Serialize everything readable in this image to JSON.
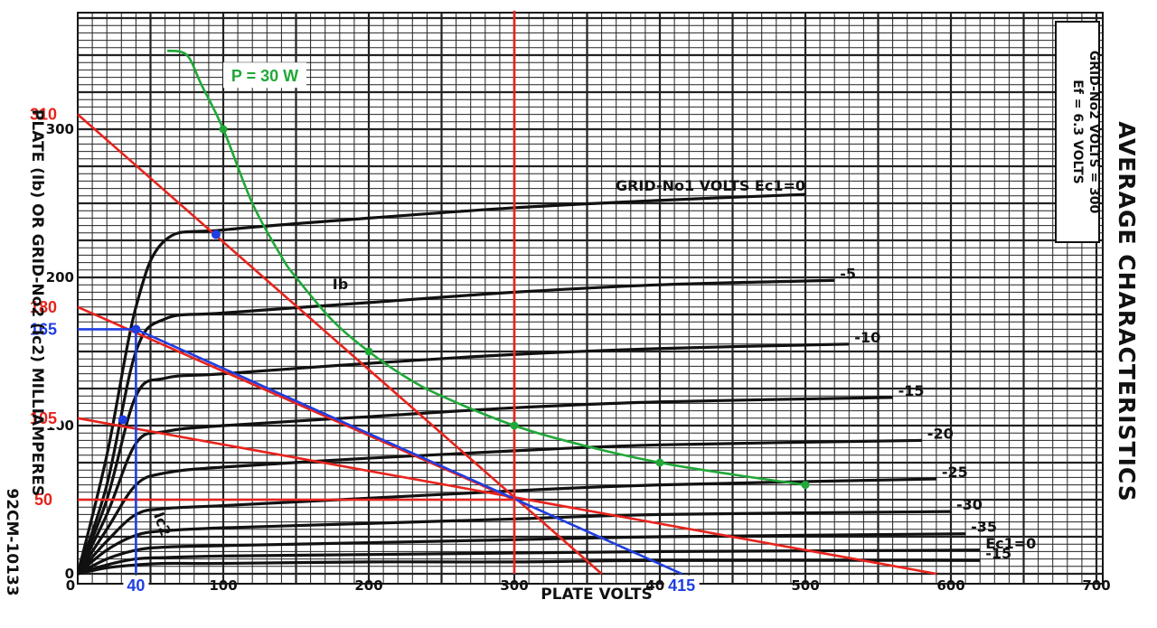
{
  "chart_data": {
    "type": "line",
    "title": "AVERAGE CHARACTERISTICS",
    "xlabel": "PLATE VOLTS",
    "ylabel": "PLATE (Ib) OR GRID-No2 (Ic2) MILLIAMPERES",
    "xlim": [
      0,
      700
    ],
    "ylim": [
      0,
      350
    ],
    "x_ticks": [
      "0",
      "100",
      "200",
      "300",
      "400",
      "500",
      "600",
      "700"
    ],
    "y_ticks": [
      "0",
      "100",
      "200",
      "300"
    ],
    "grid": true,
    "conditions": [
      "Ef = 6.3 VOLTS",
      "GRID-No2 VOLTS = 300"
    ],
    "figure_code": "92CM-10133",
    "ib_label": "Ib",
    "ic2_label": "Ic2",
    "grid_curve_labels": [
      "GRID-No1 VOLTS Ec1=0",
      "-5",
      "-10",
      "-15",
      "-20",
      "-25",
      "-30",
      "-35",
      "Ec1=0",
      "-15"
    ],
    "series": [
      {
        "label_index": 0,
        "x": [
          0,
          20,
          40,
          60,
          100,
          200,
          300,
          400,
          500
        ],
        "values": [
          0,
          80,
          180,
          225,
          232,
          240,
          247,
          252,
          256
        ]
      },
      {
        "label_index": 1,
        "x": [
          0,
          20,
          40,
          60,
          100,
          200,
          300,
          400,
          520
        ],
        "values": [
          0,
          60,
          150,
          172,
          176,
          183,
          190,
          195,
          198
        ]
      },
      {
        "label_index": 2,
        "x": [
          0,
          20,
          40,
          60,
          100,
          200,
          300,
          400,
          530
        ],
        "values": [
          0,
          50,
          120,
          132,
          135,
          142,
          148,
          152,
          155
        ]
      },
      {
        "label_index": 3,
        "x": [
          0,
          20,
          40,
          60,
          100,
          200,
          300,
          400,
          560
        ],
        "values": [
          0,
          40,
          88,
          96,
          100,
          106,
          112,
          116,
          119
        ]
      },
      {
        "label_index": 4,
        "x": [
          0,
          20,
          40,
          60,
          100,
          200,
          300,
          400,
          580
        ],
        "values": [
          0,
          30,
          60,
          68,
          72,
          78,
          83,
          87,
          90
        ]
      },
      {
        "label_index": 5,
        "x": [
          0,
          20,
          40,
          60,
          100,
          200,
          300,
          400,
          590
        ],
        "values": [
          0,
          22,
          40,
          44,
          46,
          51,
          56,
          60,
          64
        ]
      },
      {
        "label_index": 6,
        "x": [
          0,
          20,
          40,
          60,
          100,
          200,
          300,
          400,
          600
        ],
        "values": [
          0,
          16,
          26,
          29,
          31,
          34,
          37,
          40,
          42
        ]
      },
      {
        "label_index": 7,
        "x": [
          0,
          20,
          40,
          60,
          100,
          200,
          300,
          400,
          610
        ],
        "values": [
          0,
          10,
          16,
          18,
          19,
          21,
          23,
          25,
          27
        ]
      },
      {
        "label_index": 8,
        "x": [
          0,
          20,
          40,
          60,
          100,
          200,
          300,
          400,
          620
        ],
        "values": [
          0,
          6,
          10,
          11,
          12,
          13,
          14,
          15,
          16
        ]
      },
      {
        "label_index": 9,
        "x": [
          0,
          20,
          40,
          60,
          100,
          200,
          300,
          400,
          620
        ],
        "values": [
          0,
          4,
          6,
          7,
          7,
          8,
          8,
          9,
          9
        ]
      }
    ],
    "power_curve": {
      "label": "P = 30 W",
      "color": "#20a838",
      "x": [
        61.5,
        75,
        85,
        100,
        120,
        140,
        150,
        175,
        200,
        225,
        250,
        300,
        350,
        400,
        450,
        500
      ],
      "values": [
        353,
        350,
        330,
        300,
        250,
        214,
        200,
        171,
        150,
        133,
        120,
        100,
        86,
        75,
        67,
        60
      ],
      "markers_x": [
        100,
        200,
        300,
        400,
        500
      ]
    },
    "load_lines": [
      {
        "color": "#e8231d",
        "x": [
          0,
          360
        ],
        "values": [
          310,
          0
        ]
      },
      {
        "color": "#e8231d",
        "x": [
          0,
          590
        ],
        "values": [
          105,
          0
        ]
      },
      {
        "color": "#e8231d",
        "x": [
          0,
          300
        ],
        "values": [
          180,
          50
        ]
      },
      {
        "color": "#1f3ee0",
        "x": [
          40,
          415
        ],
        "values": [
          165,
          0
        ]
      },
      {
        "color": "#e8231d",
        "x": [
          0,
          300
        ],
        "values": [
          50,
          50
        ]
      },
      {
        "color": "#e8231d",
        "x": [
          300,
          300
        ],
        "values": [
          0,
          380
        ]
      },
      {
        "color": "#1f3ee0",
        "x": [
          0,
          40
        ],
        "values": [
          165,
          165
        ]
      },
      {
        "color": "#1f3ee0",
        "x": [
          40,
          40
        ],
        "values": [
          0,
          165
        ]
      }
    ],
    "points": [
      {
        "color": "#1f3ee0",
        "x": 95,
        "y": 229
      },
      {
        "color": "#1f3ee0",
        "x": 40,
        "y": 165
      },
      {
        "color": "#1f3ee0",
        "x": 31,
        "y": 104
      }
    ],
    "annotations": [
      {
        "text": "310",
        "color": "#e8231d",
        "axis": "y",
        "value": 310
      },
      {
        "text": "180",
        "color": "#e8231d",
        "axis": "y",
        "value": 180
      },
      {
        "text": "165",
        "color": "#1f3ee0",
        "axis": "y",
        "value": 165
      },
      {
        "text": "105",
        "color": "#e8231d",
        "axis": "y",
        "value": 105
      },
      {
        "text": "50",
        "color": "#e8231d",
        "axis": "y",
        "value": 50
      },
      {
        "text": "40",
        "color": "#1f3ee0",
        "axis": "x",
        "value": 40
      },
      {
        "text": "415",
        "color": "#1f3ee0",
        "axis": "x",
        "value": 415
      }
    ]
  }
}
